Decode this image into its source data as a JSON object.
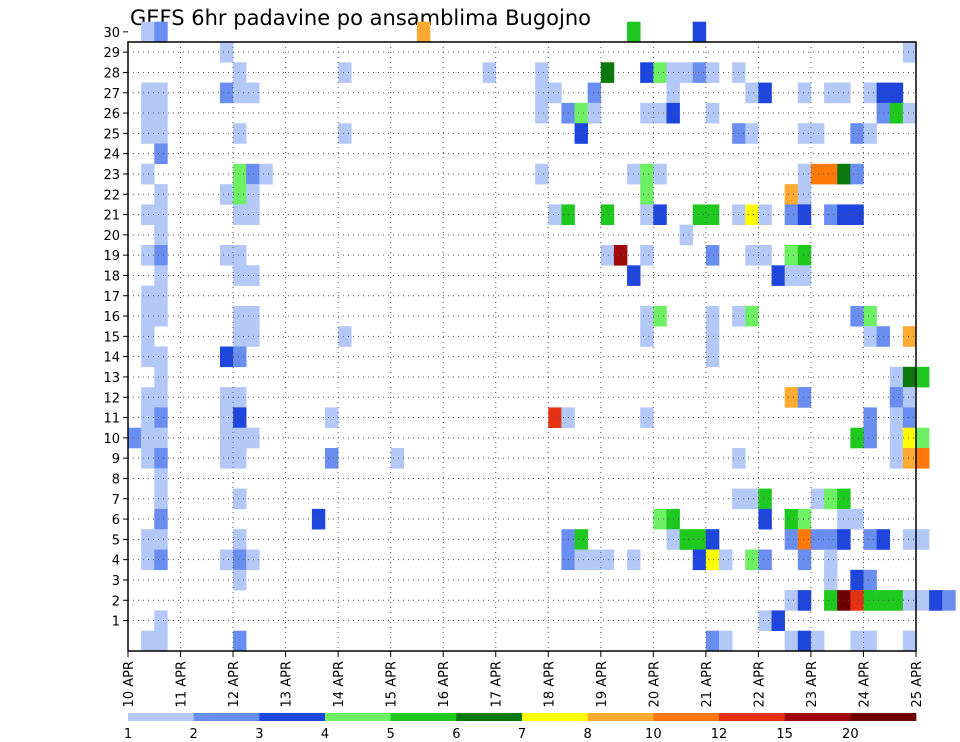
{
  "chart_data": {
    "type": "heatmap",
    "title": "GEFS 6hr padavine po ansamblima Bugojno",
    "xlabel": "",
    "ylabel": "",
    "x_tick_labels": [
      "10 APR",
      "11 APR",
      "12 APR",
      "13 APR",
      "14 APR",
      "15 APR",
      "16 APR",
      "17 APR",
      "18 APR",
      "19 APR",
      "20 APR",
      "21 APR",
      "22 APR",
      "23 APR",
      "24 APR",
      "25 APR"
    ],
    "x_range_days": [
      0,
      15
    ],
    "y_tick_labels": [
      "1",
      "2",
      "3",
      "4",
      "5",
      "6",
      "7",
      "8",
      "9",
      "10",
      "11",
      "12",
      "13",
      "14",
      "15",
      "16",
      "17",
      "18",
      "19",
      "20",
      "21",
      "22",
      "23",
      "24",
      "25",
      "26",
      "27",
      "28",
      "29",
      "30"
    ],
    "y_range": [
      0,
      30
    ],
    "grid": true,
    "time_step_hours": 6,
    "colorbar": {
      "placement": "bottom",
      "labels": [
        "1",
        "2",
        "3",
        "4",
        "5",
        "6",
        "7",
        "8",
        "10",
        "12",
        "15",
        "20"
      ],
      "colors": [
        "#b4c8f8",
        "#6a8ef0",
        "#1e46dc",
        "#6ef064",
        "#1ec81e",
        "#0a780a",
        "#ffff00",
        "#ffaa32",
        "#ff780a",
        "#e63214",
        "#a00a0a",
        "#6e0000"
      ]
    },
    "cells": [
      [
        1,
        30,
        0
      ],
      [
        2,
        30,
        1
      ],
      [
        22,
        30,
        7
      ],
      [
        38,
        30,
        4
      ],
      [
        43,
        30,
        2
      ],
      [
        7,
        29,
        0
      ],
      [
        59,
        29,
        0
      ],
      [
        8,
        28,
        0
      ],
      [
        16,
        28,
        0
      ],
      [
        27,
        28,
        0
      ],
      [
        31,
        28,
        0
      ],
      [
        36,
        28,
        5
      ],
      [
        39,
        28,
        2
      ],
      [
        40,
        28,
        3
      ],
      [
        41,
        28,
        0
      ],
      [
        42,
        28,
        0
      ],
      [
        43,
        28,
        1
      ],
      [
        44,
        28,
        0
      ],
      [
        46,
        28,
        0
      ],
      [
        1,
        27,
        0
      ],
      [
        2,
        27,
        0
      ],
      [
        7,
        27,
        1
      ],
      [
        8,
        27,
        0
      ],
      [
        9,
        27,
        0
      ],
      [
        31,
        27,
        0
      ],
      [
        32,
        27,
        0
      ],
      [
        35,
        27,
        1
      ],
      [
        41,
        27,
        0
      ],
      [
        47,
        27,
        0
      ],
      [
        48,
        27,
        2
      ],
      [
        51,
        27,
        0
      ],
      [
        53,
        27,
        0
      ],
      [
        54,
        27,
        0
      ],
      [
        56,
        27,
        0
      ],
      [
        57,
        27,
        2
      ],
      [
        58,
        27,
        2
      ],
      [
        1,
        26,
        0
      ],
      [
        2,
        26,
        0
      ],
      [
        31,
        26,
        0
      ],
      [
        33,
        26,
        1
      ],
      [
        34,
        26,
        3
      ],
      [
        35,
        26,
        0
      ],
      [
        39,
        26,
        0
      ],
      [
        40,
        26,
        0
      ],
      [
        41,
        26,
        2
      ],
      [
        44,
        26,
        0
      ],
      [
        57,
        26,
        1
      ],
      [
        58,
        26,
        4
      ],
      [
        59,
        26,
        0
      ],
      [
        1,
        25,
        0
      ],
      [
        2,
        25,
        0
      ],
      [
        8,
        25,
        0
      ],
      [
        16,
        25,
        0
      ],
      [
        34,
        25,
        2
      ],
      [
        46,
        25,
        1
      ],
      [
        47,
        25,
        0
      ],
      [
        51,
        25,
        0
      ],
      [
        52,
        25,
        0
      ],
      [
        55,
        25,
        1
      ],
      [
        56,
        25,
        0
      ],
      [
        2,
        24,
        1
      ],
      [
        1,
        23,
        0
      ],
      [
        8,
        23,
        3
      ],
      [
        9,
        23,
        1
      ],
      [
        10,
        23,
        0
      ],
      [
        31,
        23,
        0
      ],
      [
        38,
        23,
        0
      ],
      [
        39,
        23,
        3
      ],
      [
        40,
        23,
        0
      ],
      [
        51,
        23,
        0
      ],
      [
        52,
        23,
        8
      ],
      [
        53,
        23,
        8
      ],
      [
        54,
        23,
        5
      ],
      [
        55,
        23,
        1
      ],
      [
        2,
        22,
        0
      ],
      [
        7,
        22,
        0
      ],
      [
        8,
        22,
        3
      ],
      [
        9,
        22,
        0
      ],
      [
        39,
        22,
        3
      ],
      [
        50,
        22,
        7
      ],
      [
        51,
        22,
        0
      ],
      [
        1,
        21,
        0
      ],
      [
        2,
        21,
        0
      ],
      [
        8,
        21,
        0
      ],
      [
        9,
        21,
        0
      ],
      [
        32,
        21,
        0
      ],
      [
        33,
        21,
        4
      ],
      [
        36,
        21,
        4
      ],
      [
        39,
        21,
        0
      ],
      [
        40,
        21,
        2
      ],
      [
        43,
        21,
        4
      ],
      [
        44,
        21,
        4
      ],
      [
        46,
        21,
        0
      ],
      [
        47,
        21,
        6
      ],
      [
        48,
        21,
        0
      ],
      [
        50,
        21,
        1
      ],
      [
        51,
        21,
        2
      ],
      [
        53,
        21,
        1
      ],
      [
        54,
        21,
        2
      ],
      [
        55,
        21,
        2
      ],
      [
        2,
        20,
        0
      ],
      [
        42,
        20,
        0
      ],
      [
        1,
        19,
        0
      ],
      [
        2,
        19,
        1
      ],
      [
        7,
        19,
        0
      ],
      [
        8,
        19,
        0
      ],
      [
        36,
        19,
        0
      ],
      [
        37,
        19,
        10
      ],
      [
        39,
        19,
        0
      ],
      [
        44,
        19,
        1
      ],
      [
        47,
        19,
        0
      ],
      [
        48,
        19,
        0
      ],
      [
        50,
        19,
        3
      ],
      [
        51,
        19,
        4
      ],
      [
        2,
        18,
        0
      ],
      [
        8,
        18,
        0
      ],
      [
        9,
        18,
        0
      ],
      [
        38,
        18,
        2
      ],
      [
        49,
        18,
        2
      ],
      [
        50,
        18,
        0
      ],
      [
        51,
        18,
        0
      ],
      [
        1,
        17,
        0
      ],
      [
        2,
        17,
        0
      ],
      [
        1,
        16,
        0
      ],
      [
        2,
        16,
        0
      ],
      [
        8,
        16,
        0
      ],
      [
        9,
        16,
        0
      ],
      [
        39,
        16,
        0
      ],
      [
        40,
        16,
        3
      ],
      [
        44,
        16,
        0
      ],
      [
        46,
        16,
        0
      ],
      [
        47,
        16,
        3
      ],
      [
        55,
        16,
        1
      ],
      [
        56,
        16,
        3
      ],
      [
        1,
        15,
        0
      ],
      [
        8,
        15,
        0
      ],
      [
        9,
        15,
        0
      ],
      [
        16,
        15,
        0
      ],
      [
        39,
        15,
        0
      ],
      [
        44,
        15,
        0
      ],
      [
        56,
        15,
        0
      ],
      [
        57,
        15,
        1
      ],
      [
        59,
        15,
        7
      ],
      [
        1,
        14,
        0
      ],
      [
        2,
        14,
        0
      ],
      [
        7,
        14,
        2
      ],
      [
        8,
        14,
        1
      ],
      [
        44,
        14,
        0
      ],
      [
        2,
        13,
        0
      ],
      [
        58,
        13,
        0
      ],
      [
        59,
        13,
        5
      ],
      [
        60,
        13,
        4
      ],
      [
        1,
        12,
        0
      ],
      [
        2,
        12,
        0
      ],
      [
        7,
        12,
        0
      ],
      [
        8,
        12,
        0
      ],
      [
        50,
        12,
        7
      ],
      [
        51,
        12,
        1
      ],
      [
        58,
        12,
        1
      ],
      [
        59,
        12,
        0
      ],
      [
        1,
        11,
        0
      ],
      [
        2,
        11,
        1
      ],
      [
        7,
        11,
        0
      ],
      [
        8,
        11,
        2
      ],
      [
        15,
        11,
        0
      ],
      [
        32,
        11,
        9
      ],
      [
        33,
        11,
        0
      ],
      [
        39,
        11,
        0
      ],
      [
        56,
        11,
        1
      ],
      [
        58,
        11,
        0
      ],
      [
        59,
        11,
        1
      ],
      [
        0,
        10,
        1
      ],
      [
        1,
        10,
        0
      ],
      [
        2,
        10,
        0
      ],
      [
        7,
        10,
        0
      ],
      [
        8,
        10,
        0
      ],
      [
        9,
        10,
        0
      ],
      [
        55,
        10,
        4
      ],
      [
        56,
        10,
        1
      ],
      [
        58,
        10,
        0
      ],
      [
        59,
        10,
        6
      ],
      [
        60,
        10,
        3
      ],
      [
        1,
        9,
        0
      ],
      [
        2,
        9,
        1
      ],
      [
        7,
        9,
        0
      ],
      [
        8,
        9,
        0
      ],
      [
        15,
        9,
        1
      ],
      [
        20,
        9,
        0
      ],
      [
        46,
        9,
        0
      ],
      [
        58,
        9,
        0
      ],
      [
        59,
        9,
        7
      ],
      [
        60,
        9,
        8
      ],
      [
        2,
        8,
        0
      ],
      [
        2,
        7,
        0
      ],
      [
        8,
        7,
        0
      ],
      [
        46,
        7,
        0
      ],
      [
        47,
        7,
        0
      ],
      [
        48,
        7,
        4
      ],
      [
        52,
        7,
        0
      ],
      [
        53,
        7,
        3
      ],
      [
        54,
        7,
        4
      ],
      [
        2,
        6,
        1
      ],
      [
        14,
        6,
        2
      ],
      [
        40,
        6,
        3
      ],
      [
        41,
        6,
        4
      ],
      [
        48,
        6,
        2
      ],
      [
        50,
        6,
        4
      ],
      [
        51,
        6,
        3
      ],
      [
        54,
        6,
        0
      ],
      [
        55,
        6,
        0
      ],
      [
        1,
        5,
        0
      ],
      [
        2,
        5,
        0
      ],
      [
        8,
        5,
        0
      ],
      [
        33,
        5,
        1
      ],
      [
        34,
        5,
        4
      ],
      [
        51,
        5,
        0
      ],
      [
        53,
        5,
        1
      ],
      [
        54,
        5,
        2
      ],
      [
        56,
        5,
        1
      ],
      [
        57,
        5,
        2
      ],
      [
        59,
        5,
        0
      ],
      [
        41,
        5,
        0
      ],
      [
        42,
        5,
        4
      ],
      [
        43,
        5,
        4
      ],
      [
        44,
        5,
        2
      ],
      [
        50,
        5,
        1
      ],
      [
        51,
        5,
        8
      ],
      [
        52,
        5,
        1
      ],
      [
        60,
        5,
        0
      ],
      [
        1,
        4,
        0
      ],
      [
        2,
        4,
        1
      ],
      [
        7,
        4,
        0
      ],
      [
        8,
        4,
        1
      ],
      [
        9,
        4,
        0
      ],
      [
        33,
        4,
        1
      ],
      [
        34,
        4,
        0
      ],
      [
        35,
        4,
        0
      ],
      [
        36,
        4,
        0
      ],
      [
        38,
        4,
        0
      ],
      [
        43,
        4,
        2
      ],
      [
        44,
        4,
        6
      ],
      [
        45,
        4,
        0
      ],
      [
        47,
        4,
        3
      ],
      [
        48,
        4,
        1
      ],
      [
        51,
        4,
        1
      ],
      [
        53,
        4,
        0
      ],
      [
        8,
        3,
        0
      ],
      [
        53,
        3,
        0
      ],
      [
        55,
        3,
        2
      ],
      [
        56,
        3,
        1
      ],
      [
        50,
        2,
        0
      ],
      [
        51,
        2,
        2
      ],
      [
        53,
        2,
        4
      ],
      [
        54,
        2,
        11
      ],
      [
        55,
        2,
        9
      ],
      [
        56,
        2,
        4
      ],
      [
        57,
        2,
        4
      ],
      [
        58,
        2,
        4
      ],
      [
        59,
        2,
        0
      ],
      [
        60,
        2,
        0
      ],
      [
        61,
        2,
        2
      ],
      [
        62,
        2,
        1
      ],
      [
        2,
        1,
        0
      ],
      [
        48,
        1,
        0
      ],
      [
        49,
        1,
        2
      ],
      [
        1,
        0,
        0
      ],
      [
        2,
        0,
        0
      ],
      [
        8,
        0,
        1
      ],
      [
        44,
        0,
        1
      ],
      [
        45,
        0,
        0
      ],
      [
        50,
        0,
        0
      ],
      [
        51,
        0,
        2
      ],
      [
        52,
        0,
        0
      ],
      [
        55,
        0,
        0
      ],
      [
        56,
        0,
        0
      ],
      [
        59,
        0,
        0
      ]
    ]
  }
}
